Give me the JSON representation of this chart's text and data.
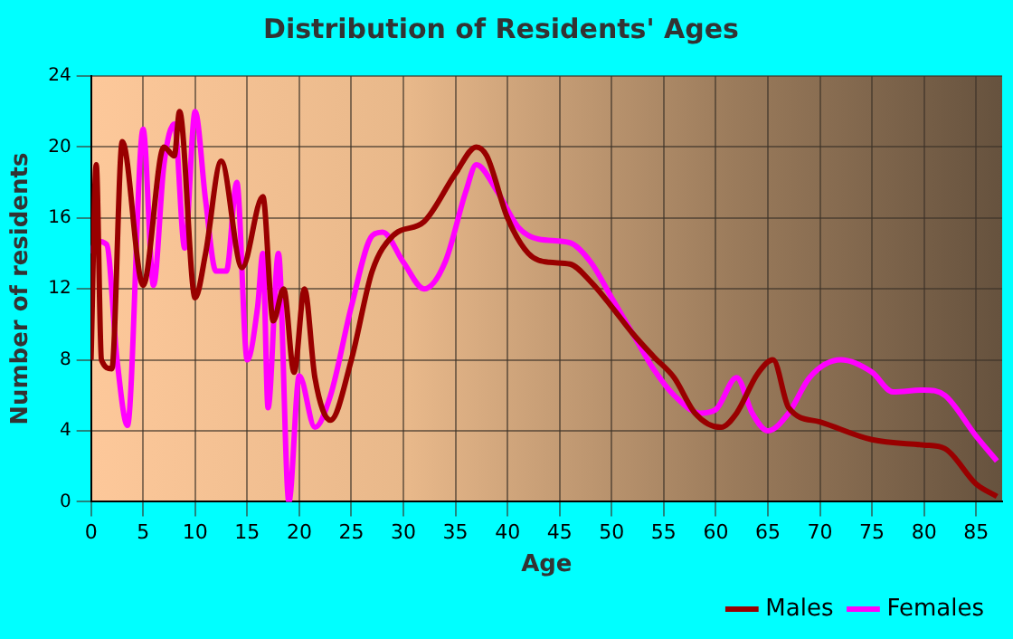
{
  "chart_data": {
    "type": "line",
    "title": "Distribution of Residents' Ages",
    "xlabel": "Age",
    "ylabel": "Number of residents",
    "xlim": [
      0,
      87.5
    ],
    "xticks": [
      0,
      5,
      10,
      15,
      20,
      25,
      30,
      35,
      40,
      45,
      50,
      55,
      60,
      65,
      70,
      75,
      80,
      85
    ],
    "ylim": [
      0,
      24
    ],
    "yticks": [
      0,
      4,
      8,
      12,
      16,
      20,
      24
    ],
    "grid": true,
    "legend": "bottom right",
    "marker": "none",
    "line_style": "solid",
    "series": [
      {
        "name": "Males",
        "color": "#990000",
        "x": [
          0,
          0.5,
          1,
          2,
          3,
          5,
          7,
          8,
          8.5,
          10,
          11,
          12.5,
          14.5,
          16.5,
          17.5,
          18.5,
          19.5,
          20.5,
          21.5,
          23,
          25,
          27,
          29,
          32,
          35,
          37,
          38,
          40,
          42,
          44,
          46,
          48,
          50,
          52,
          54,
          56,
          58,
          60.5,
          62,
          64,
          65.5,
          67,
          70,
          75,
          80,
          82,
          85,
          87
        ],
        "values": [
          8,
          19,
          8,
          7.5,
          20.3,
          12.2,
          20,
          19.5,
          22,
          11.5,
          14,
          19.2,
          13.2,
          17.2,
          10.2,
          12,
          7.3,
          12,
          7,
          4.6,
          8,
          13,
          15,
          15.8,
          18.5,
          20,
          19.5,
          16,
          14,
          13.5,
          13.4,
          12.4,
          11,
          9.5,
          8.2,
          7,
          5,
          4.2,
          5,
          7.2,
          8,
          5.3,
          4.5,
          3.5,
          3.2,
          3,
          1,
          0.3
        ]
      },
      {
        "name": "Females",
        "color": "#ff00ff",
        "x": [
          0,
          0.5,
          1.5,
          2.5,
          3.5,
          5,
          6,
          7,
          8,
          9,
          10,
          11,
          12,
          13,
          14,
          15,
          16,
          16.5,
          17,
          18,
          19,
          20,
          21.5,
          23,
          25,
          27,
          28,
          30,
          32,
          34,
          36,
          37,
          39,
          41,
          43,
          46,
          48,
          50,
          52,
          54,
          56,
          58.5,
          60,
          62,
          63.5,
          65,
          67,
          69,
          72,
          75,
          77,
          80,
          82,
          85,
          87
        ],
        "values": [
          14,
          14.7,
          14.5,
          8,
          4.3,
          21,
          12.2,
          19,
          21.3,
          14.3,
          22,
          17,
          13,
          13,
          18,
          8,
          11,
          14,
          5.3,
          14,
          0,
          7.1,
          4.2,
          6,
          11,
          15,
          15.2,
          13.5,
          12,
          13.5,
          17.5,
          19,
          17.5,
          15.5,
          14.8,
          14.6,
          13.5,
          11.5,
          9.5,
          7.5,
          6,
          5,
          5.2,
          7,
          5,
          4,
          5,
          7,
          8,
          7.3,
          6.2,
          6.3,
          6,
          3.7,
          2.3
        ]
      }
    ]
  }
}
